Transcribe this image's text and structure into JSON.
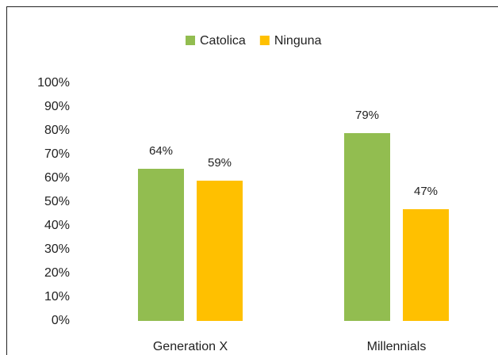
{
  "chart_data": {
    "type": "bar",
    "categories": [
      "Generation X",
      "Millennials"
    ],
    "series": [
      {
        "name": "Catolica",
        "color": "#92bd50",
        "values": [
          64,
          79
        ],
        "value_labels": [
          "64%",
          "79%"
        ]
      },
      {
        "name": "Ninguna",
        "color": "#ffc000",
        "values": [
          59,
          47
        ],
        "value_labels": [
          "59%",
          "47%"
        ]
      }
    ],
    "ylim": [
      0,
      100
    ],
    "yticks": [
      {
        "value": 0,
        "label": "0%"
      },
      {
        "value": 10,
        "label": "10%"
      },
      {
        "value": 20,
        "label": "20%"
      },
      {
        "value": 30,
        "label": "30%"
      },
      {
        "value": 40,
        "label": "40%"
      },
      {
        "value": 50,
        "label": "50%"
      },
      {
        "value": 60,
        "label": "60%"
      },
      {
        "value": 70,
        "label": "70%"
      },
      {
        "value": 80,
        "label": "80%"
      },
      {
        "value": 90,
        "label": "90%"
      },
      {
        "value": 100,
        "label": "100%"
      }
    ],
    "grid": false,
    "legend": "top"
  }
}
